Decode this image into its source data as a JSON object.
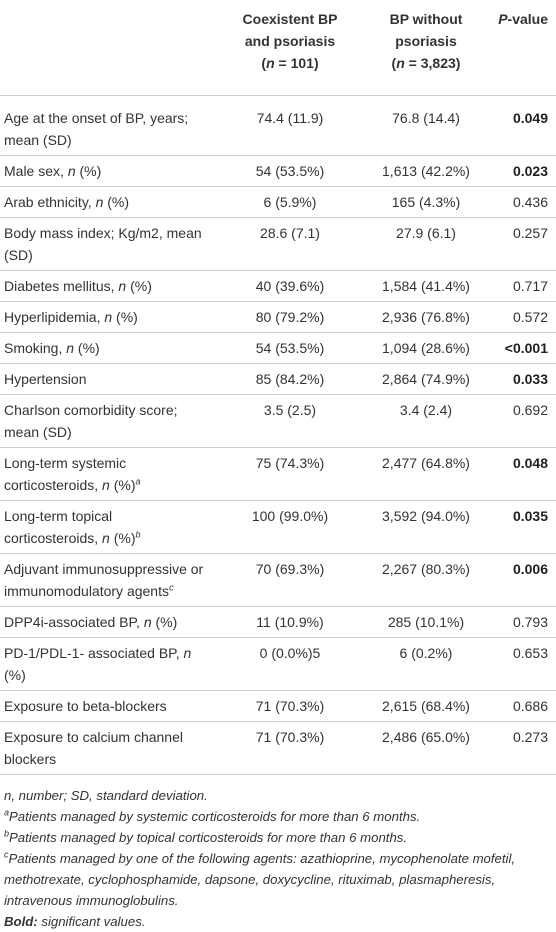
{
  "header": {
    "col2_line1": "Coexistent BP",
    "col2_line2": "and psoriasis",
    "col2_n_label": "n",
    "col2_n_value": " = 101)",
    "col3_line1": "BP without",
    "col3_line2": "psoriasis",
    "col3_n_label": "n",
    "col3_n_value": " = 3,823)",
    "col4_p": "P",
    "col4_rest": "-value",
    "open_paren": "("
  },
  "rows": [
    {
      "label": "Age at the onset of BP, years; mean (SD)",
      "label_italic": "",
      "label_after": "",
      "sup": "",
      "a": "74.4 (11.9)",
      "b": "76.8 (14.4)",
      "p": "0.049",
      "bold": true
    },
    {
      "label": "Male sex, ",
      "label_italic": "n",
      "label_after": " (%)",
      "sup": "",
      "a": "54 (53.5%)",
      "b": "1,613 (42.2%)",
      "p": "0.023",
      "bold": true
    },
    {
      "label": "Arab ethnicity, ",
      "label_italic": "n",
      "label_after": " (%)",
      "sup": "",
      "a": "6 (5.9%)",
      "b": "165 (4.3%)",
      "p": "0.436",
      "bold": false
    },
    {
      "label": "Body mass index; Kg/m2, mean (SD)",
      "label_italic": "",
      "label_after": "",
      "sup": "",
      "a": "28.6 (7.1)",
      "b": "27.9 (6.1)",
      "p": "0.257",
      "bold": false
    },
    {
      "label": "Diabetes mellitus, ",
      "label_italic": "n",
      "label_after": " (%)",
      "sup": "",
      "a": "40 (39.6%)",
      "b": "1,584 (41.4%)",
      "p": "0.717",
      "bold": false
    },
    {
      "label": "Hyperlipidemia, ",
      "label_italic": "n",
      "label_after": " (%)",
      "sup": "",
      "a": "80 (79.2%)",
      "b": "2,936 (76.8%)",
      "p": "0.572",
      "bold": false
    },
    {
      "label": "Smoking, ",
      "label_italic": "n",
      "label_after": " (%)",
      "sup": "",
      "a": "54 (53.5%)",
      "b": "1,094 (28.6%)",
      "p": "<0.001",
      "bold": true
    },
    {
      "label": "Hypertension",
      "label_italic": "",
      "label_after": "",
      "sup": "",
      "a": "85 (84.2%)",
      "b": "2,864 (74.9%)",
      "p": "0.033",
      "bold": true
    },
    {
      "label": "Charlson comorbidity score; mean (SD)",
      "label_italic": "",
      "label_after": "",
      "sup": "",
      "a": "3.5 (2.5)",
      "b": "3.4 (2.4)",
      "p": "0.692",
      "bold": false
    },
    {
      "label": "Long-term systemic corticosteroids, ",
      "label_italic": "n",
      "label_after": " (%)",
      "sup": "a",
      "a": "75 (74.3%)",
      "b": "2,477 (64.8%)",
      "p": "0.048",
      "bold": true
    },
    {
      "label": "Long-term topical corticosteroids, ",
      "label_italic": "n",
      "label_after": " (%)",
      "sup": "b",
      "a": "100 (99.0%)",
      "b": "3,592 (94.0%)",
      "p": "0.035",
      "bold": true
    },
    {
      "label": "Adjuvant immunosuppressive or immunomodulatory agents",
      "label_italic": "",
      "label_after": "",
      "sup": "c",
      "a": "70 (69.3%)",
      "b": "2,267 (80.3%)",
      "p": "0.006",
      "bold": true
    },
    {
      "label": "DPP4i-associated BP, ",
      "label_italic": "n",
      "label_after": " (%)",
      "sup": "",
      "a": "11 (10.9%)",
      "b": "285 (10.1%)",
      "p": "0.793",
      "bold": false
    },
    {
      "label": "PD-1/PDL-1- associated BP, ",
      "label_italic": "n",
      "label_after": " (%)",
      "sup": "",
      "a": "0 (0.0%)5",
      "b": "6 (0.2%)",
      "p": "0.653",
      "bold": false
    },
    {
      "label": "Exposure to beta-blockers",
      "label_italic": "",
      "label_after": "",
      "sup": "",
      "a": "71 (70.3%)",
      "b": "2,615 (68.4%)",
      "p": "0.686",
      "bold": false
    },
    {
      "label": "Exposure to calcium channel blockers",
      "label_italic": "",
      "label_after": "",
      "sup": "",
      "a": "71 (70.3%)",
      "b": "2,486 (65.0%)",
      "p": "0.273",
      "bold": false
    }
  ],
  "footnotes": {
    "abbrev": "n, number; SD, standard deviation.",
    "a_mark": "a",
    "a_text": "Patients managed by systemic corticosteroids for more than 6 months.",
    "b_mark": "b",
    "b_text": "Patients managed by topical corticosteroids for more than 6 months.",
    "c_mark": "c",
    "c_text": "Patients managed by one of the following agents: azathioprine, mycophenolate mofetil, methotrexate, cyclophosphamide, dapsone, doxycycline, rituximab, plasmapheresis, intravenous immunoglobulins.",
    "bold_label": "Bold:",
    "bold_text": " significant values."
  }
}
